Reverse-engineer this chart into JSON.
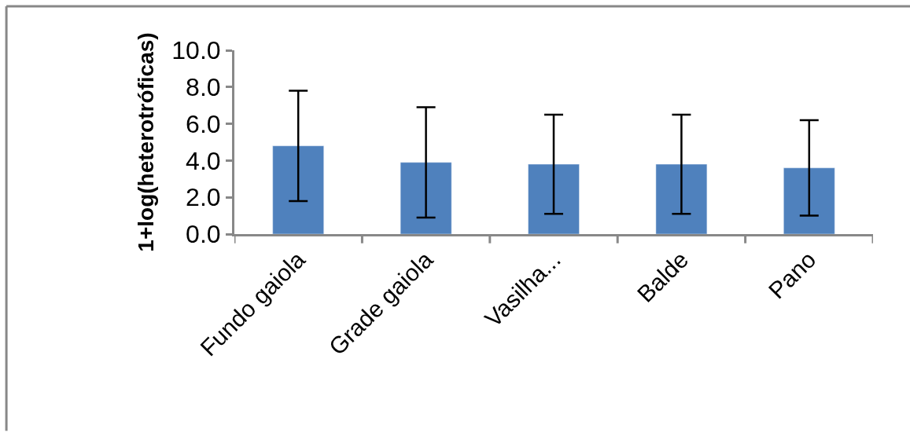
{
  "chart_data": {
    "type": "bar",
    "ylabel": "1+log(heterotróficas)",
    "categories": [
      "Fundo gaiola",
      "Grade gaiola",
      "Vasilha...",
      "Balde",
      "Pano"
    ],
    "values": [
      4.8,
      3.9,
      3.8,
      3.8,
      3.6
    ],
    "errors": [
      3.0,
      3.0,
      2.7,
      2.7,
      2.6
    ],
    "color": "#4f81bd",
    "ylim": [
      0,
      10
    ],
    "yticks": [
      {
        "value": 0,
        "label": "0.0"
      },
      {
        "value": 2,
        "label": "2.0"
      },
      {
        "value": 4,
        "label": "4.0"
      },
      {
        "value": 6,
        "label": "6.0"
      },
      {
        "value": 8,
        "label": "8.0"
      },
      {
        "value": 10,
        "label": "10.0"
      }
    ],
    "grid": false
  }
}
